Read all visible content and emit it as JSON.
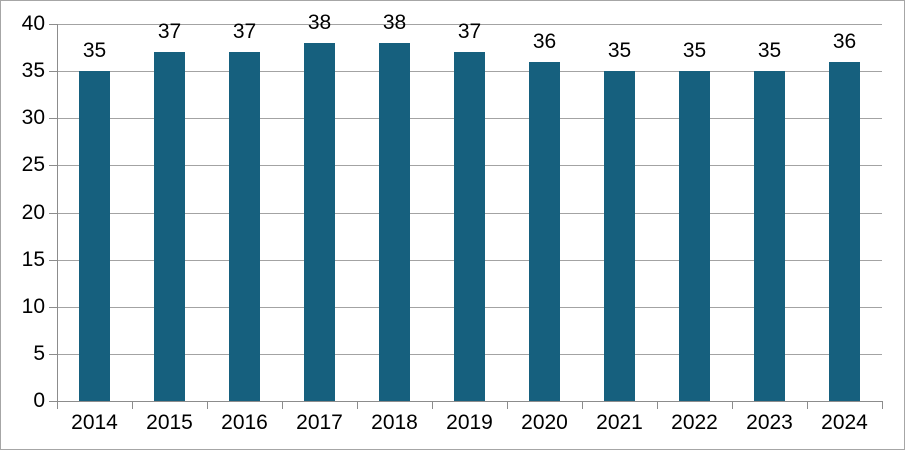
{
  "chart_data": {
    "type": "bar",
    "title": "",
    "xlabel": "",
    "ylabel": "",
    "categories": [
      "2014",
      "2015",
      "2016",
      "2017",
      "2018",
      "2019",
      "2020",
      "2021",
      "2022",
      "2023",
      "2024"
    ],
    "values": [
      35,
      37,
      37,
      38,
      38,
      37,
      36,
      35,
      35,
      35,
      36
    ],
    "ylim": [
      0,
      40
    ],
    "yticks": [
      0,
      5,
      10,
      15,
      20,
      25,
      30,
      35,
      40
    ],
    "grid": true,
    "legend": "none",
    "show_data_labels": true,
    "colors": {
      "bar": "#16607E",
      "gridline": "#A3A3A3",
      "axis": "#8C8C8C",
      "text": "#000000",
      "frame": "#A6A6A6",
      "background": "#FFFFFF"
    }
  }
}
